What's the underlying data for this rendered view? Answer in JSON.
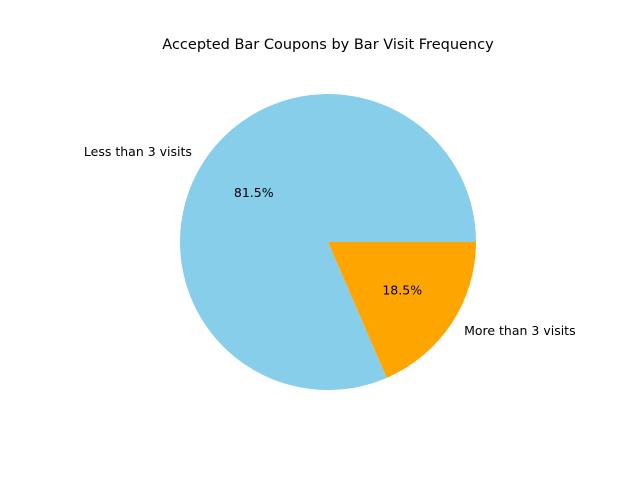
{
  "chart_data": {
    "type": "pie",
    "title": "Accepted Bar Coupons by Bar Visit Frequency",
    "slices": [
      {
        "label": "Less than 3 visits",
        "value": 81.5,
        "pct_label": "81.5%",
        "color": "#87CEEB"
      },
      {
        "label": "More than 3 visits",
        "value": 18.5,
        "pct_label": "18.5%",
        "color": "#FFA500"
      }
    ],
    "start_angle": 0,
    "direction": "counterclockwise",
    "legend": "none"
  }
}
